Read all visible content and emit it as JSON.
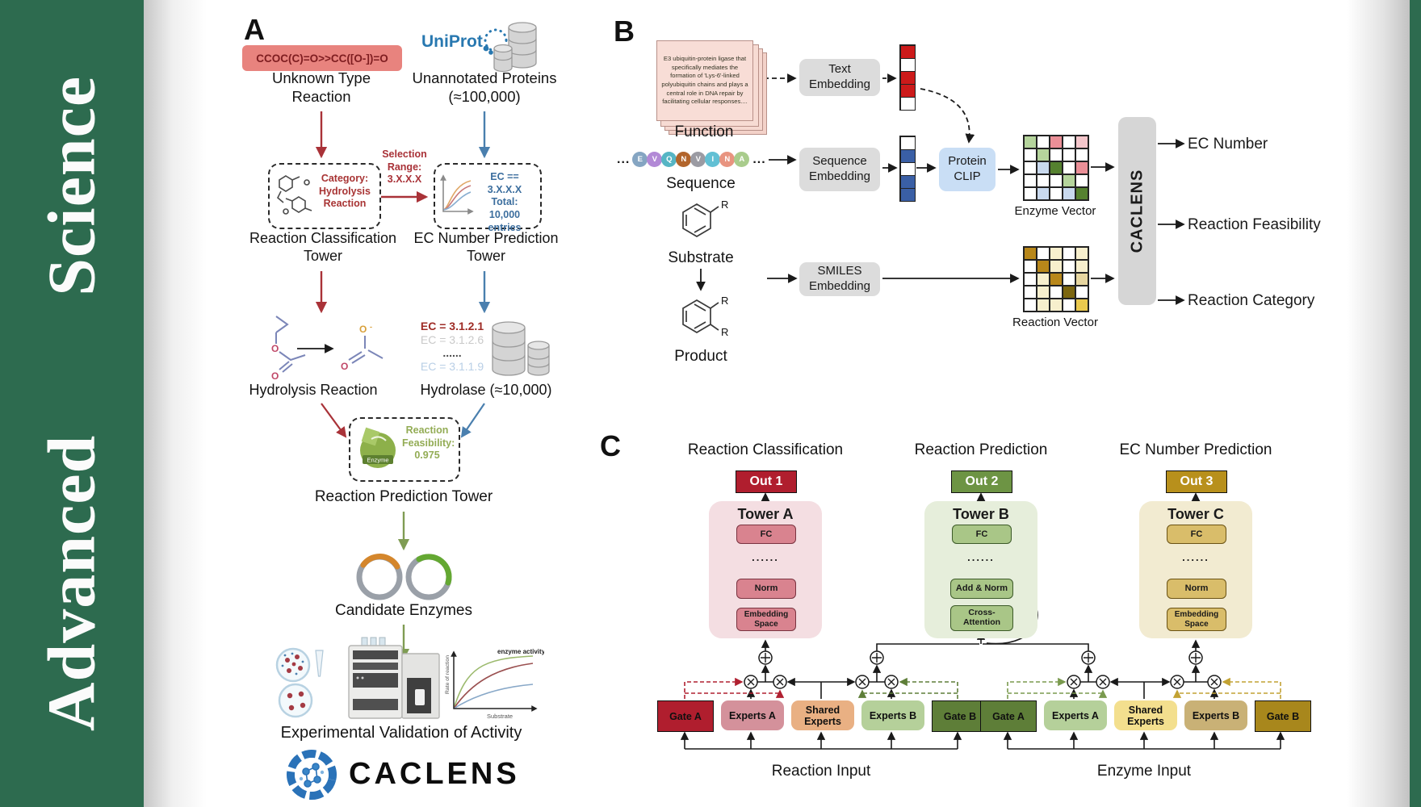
{
  "sidebar": {
    "journal_name": "Advanced Science"
  },
  "panelA": {
    "label": "A",
    "smiles": "CCOC(C)=O>>CC([O-])=O",
    "unknown_caption": "Unknown Type Reaction",
    "uniprot": "UniProt",
    "unannotated_caption": "Unannotated Proteins (≈100,000)",
    "category_text": "Category: Hydrolysis Reaction",
    "selection_label": "Selection Range: 3.X.X.X",
    "ec_box_text": "EC == 3.X.X.X Total: 10,000 entries",
    "tower1_caption": "Reaction Classification Tower",
    "tower2_caption": "EC Number Prediction Tower",
    "ec_list": [
      {
        "text": "EC = 3.1.2.1",
        "color": "#9e2b25",
        "bold": true
      },
      {
        "text": "EC = 3.1.2.6",
        "color": "#c9c9c9",
        "bold": false
      },
      {
        "text": "......",
        "color": "#4a4a4a",
        "bold": true
      },
      {
        "text": "EC = 3.1.1.9",
        "color": "#b9cfe6",
        "bold": false
      }
    ],
    "hydrolysis_caption": "Hydrolysis Reaction",
    "hydrolase_caption": "Hydrolase (≈10,000)",
    "enzyme_label": "Enzyme",
    "feasibility_text": "Reaction Feasibility: 0.975",
    "tower3_caption": "Reaction Prediction Tower",
    "candidate_caption": "Candidate Enzymes",
    "plot": {
      "annotation": "enzyme activity",
      "ylabel": "Rate of reaction",
      "xlabel": "Substrate"
    },
    "validation_caption": "Experimental Validation of Activity",
    "logo_text": "CACLENS"
  },
  "panelB": {
    "label": "B",
    "function_card_text": "E3 ubiquitin-protein ligase that specifically mediates the formation of 'Lys-6'-linked polyubiquitin chains and plays a central role in DNA repair by facilitating cellular responses....",
    "function_caption": "Function",
    "ellipsis": "...",
    "sequence_caption": "Sequence",
    "sequence_residues": [
      {
        "letter": "E",
        "color": "#85a5c2"
      },
      {
        "letter": "V",
        "color": "#b289d6"
      },
      {
        "letter": "Q",
        "color": "#56b5c4"
      },
      {
        "letter": "N",
        "color": "#b2652c"
      },
      {
        "letter": "V",
        "color": "#9b9ba3"
      },
      {
        "letter": "I",
        "color": "#62c0d4"
      },
      {
        "letter": "N",
        "color": "#e89480"
      },
      {
        "letter": "A",
        "color": "#a9cc8c"
      }
    ],
    "substrate_caption": "Substrate",
    "product_caption": "Product",
    "r_label": "R",
    "text_embedding": "Text Embedding",
    "sequence_embedding": "Sequence Embedding",
    "smiles_embedding": "SMILES Embedding",
    "protein_clip": "Protein CLIP",
    "text_vector_cells": [
      "#cc1a1a",
      "#ffffff",
      "#cc1a1a",
      "#cc1a1a",
      "#ffffff"
    ],
    "sequence_vector_cells": [
      "#ffffff",
      "#3a5fa5",
      "#ffffff",
      "#3a5fa5",
      "#3a5fa5"
    ],
    "enzyme_matrix": [
      [
        "#b5d49c",
        "#ffffff",
        "#ea8f97",
        "#ffffff",
        "#f4c6cb"
      ],
      [
        "#ffffff",
        "#b5d49c",
        "#ffffff",
        "#ffffff",
        "#ffffff"
      ],
      [
        "#ffffff",
        "#c9d9ee",
        "#55812f",
        "#ffffff",
        "#ea8f97"
      ],
      [
        "#ffffff",
        "#ffffff",
        "#ffffff",
        "#b5d49c",
        "#ffffff"
      ],
      [
        "#ffffff",
        "#c9d9ee",
        "#ffffff",
        "#c9d9ee",
        "#55812f"
      ]
    ],
    "reaction_matrix": [
      [
        "#b8871a",
        "#ffffff",
        "#f7efcd",
        "#ffffff",
        "#f7efcd"
      ],
      [
        "#ffffff",
        "#b8871a",
        "#f7efcd",
        "#ffffff",
        "#f7efcd"
      ],
      [
        "#ffffff",
        "#f7efcd",
        "#b8871a",
        "#ffffff",
        "#e7d6a0"
      ],
      [
        "#ffffff",
        "#f7efcd",
        "#ffffff",
        "#7c660f",
        "#ffffff"
      ],
      [
        "#ffffff",
        "#f7efcd",
        "#f7efcd",
        "#ffffff",
        "#eac94e"
      ]
    ],
    "enzyme_vector_caption": "Enzyme Vector",
    "reaction_vector_caption": "Reaction Vector",
    "caclens_bar": "CACLENS",
    "outputs": [
      "EC Number",
      "Reaction Feasibility",
      "Reaction Category"
    ]
  },
  "panelC": {
    "label": "C",
    "headers": [
      "Reaction Classification",
      "Reaction Prediction",
      "EC Number Prediction"
    ],
    "towers": [
      {
        "out": "Out 1",
        "name": "Tower A",
        "layers": [
          "FC",
          "......",
          "Norm",
          "Embedding Space"
        ]
      },
      {
        "out": "Out 2",
        "name": "Tower B",
        "layers": [
          "FC",
          "......",
          "Add & Norm",
          "Cross-Attention"
        ]
      },
      {
        "out": "Out 3",
        "name": "Tower C",
        "layers": [
          "FC",
          "......",
          "Norm",
          "Embedding Space"
        ]
      }
    ],
    "groups": [
      {
        "label": "Reaction Input",
        "boxes": [
          {
            "text": "Gate A",
            "bg": "#b01e2e"
          },
          {
            "text": "Experts A",
            "bg": "#d4919b"
          },
          {
            "text": "Shared Experts",
            "bg": "#e9b083"
          },
          {
            "text": "Experts B",
            "bg": "#b5d09a"
          },
          {
            "text": "Gate B",
            "bg": "#5e7e38"
          }
        ]
      },
      {
        "label": "Enzyme Input",
        "boxes": [
          {
            "text": "Gate A",
            "bg": "#5e7e38"
          },
          {
            "text": "Experts A",
            "bg": "#b5d09a"
          },
          {
            "text": "Shared Experts",
            "bg": "#f3df8e"
          },
          {
            "text": "Experts B",
            "bg": "#c9b176"
          },
          {
            "text": "Gate B",
            "bg": "#a8871c"
          }
        ]
      }
    ]
  },
  "colors": {
    "sidebar_green": "#2d6b4f",
    "salmon_box": "#e8837e",
    "red_accent": "#a93238",
    "blue_accent": "#4a7fae",
    "olive_arrow": "#7f9c53",
    "crimson": "#b01e2e",
    "dark_green": "#5e7e38",
    "dark_gold": "#a8871c",
    "uniprot_blue": "#2878b0",
    "clip_blue": "#c9def5",
    "bar_gray": "#d6d6d6"
  }
}
